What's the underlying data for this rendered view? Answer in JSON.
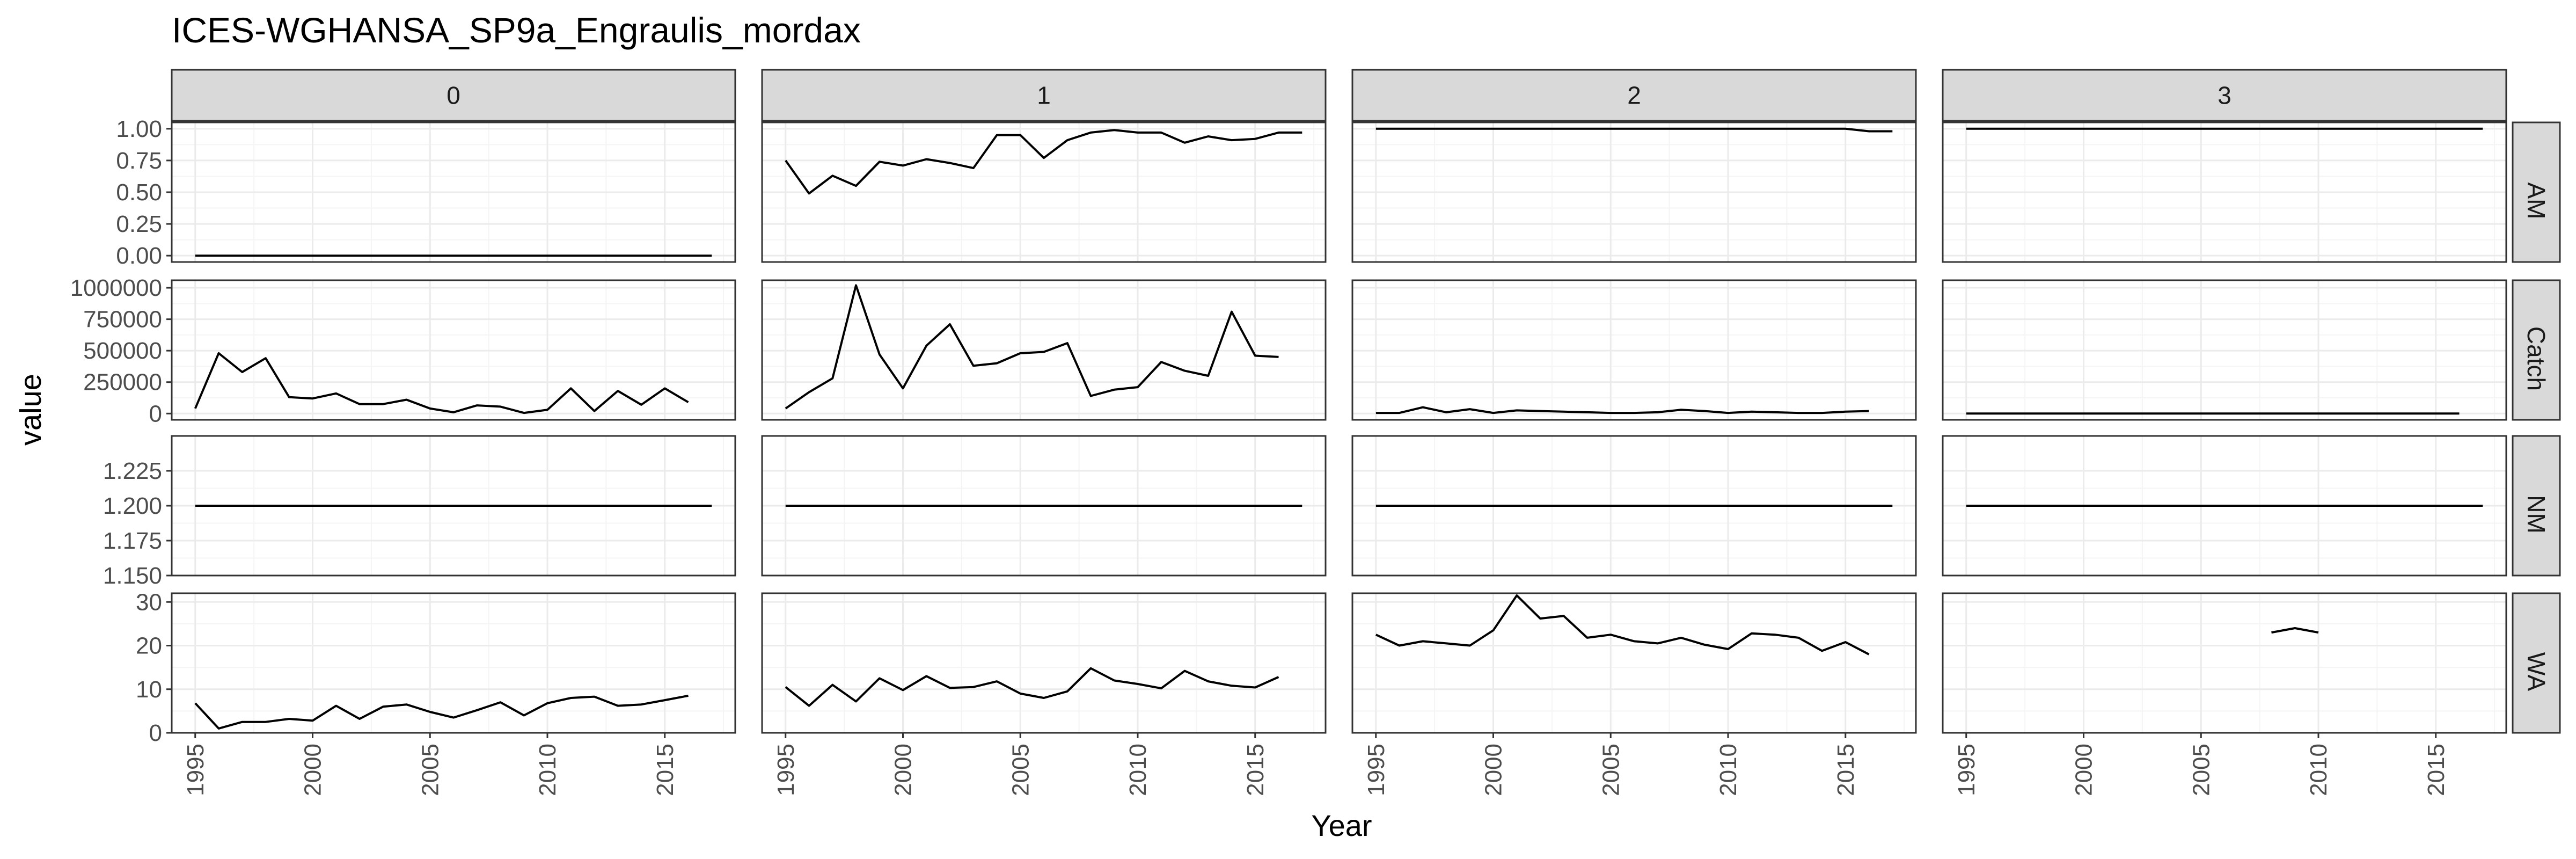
{
  "chart_data": {
    "type": "line",
    "title": "ICES-WGHANSA_SP9a_Engraulis_mordax",
    "xlabel": "Year",
    "ylabel": "value",
    "facet_columns": [
      "0",
      "1",
      "2",
      "3"
    ],
    "facet_rows": [
      "AM",
      "Catch",
      "NM",
      "WA"
    ],
    "xlim": [
      1994,
      2018
    ],
    "x_ticks": [
      1995,
      2000,
      2005,
      2010,
      2015
    ],
    "x_tick_labels": [
      "1995",
      "2000",
      "2005",
      "2010",
      "2015"
    ],
    "rows": {
      "AM": {
        "ylim": [
          -0.05,
          1.05
        ],
        "y_ticks": [
          0,
          0.25,
          0.5,
          0.75,
          1.0
        ],
        "y_tick_labels": [
          "0.00",
          "0.25",
          "0.50",
          "0.75",
          "1.00"
        ],
        "series": {
          "0": [
            [
              1995,
              0
            ],
            [
              2017,
              0
            ]
          ],
          "1": [
            [
              1995,
              0.75
            ],
            [
              1996,
              0.49
            ],
            [
              1997,
              0.63
            ],
            [
              1998,
              0.55
            ],
            [
              1999,
              0.74
            ],
            [
              2000,
              0.71
            ],
            [
              2001,
              0.76
            ],
            [
              2002,
              0.73
            ],
            [
              2003,
              0.69
            ],
            [
              2004,
              0.95
            ],
            [
              2005,
              0.95
            ],
            [
              2006,
              0.77
            ],
            [
              2007,
              0.91
            ],
            [
              2008,
              0.97
            ],
            [
              2009,
              0.99
            ],
            [
              2010,
              0.97
            ],
            [
              2011,
              0.97
            ],
            [
              2012,
              0.89
            ],
            [
              2013,
              0.94
            ],
            [
              2014,
              0.91
            ],
            [
              2015,
              0.92
            ],
            [
              2016,
              0.97
            ],
            [
              2017,
              0.97
            ]
          ],
          "2": [
            [
              1995,
              1.0
            ],
            [
              2014,
              1.0
            ],
            [
              2015,
              1.0
            ],
            [
              2016,
              0.98
            ],
            [
              2017,
              0.98
            ]
          ],
          "3": [
            [
              1995,
              1.0
            ],
            [
              2017,
              1.0
            ]
          ]
        }
      },
      "Catch": {
        "ylim": [
          -50000,
          1060000
        ],
        "y_ticks": [
          0,
          250000,
          500000,
          750000,
          1000000
        ],
        "y_tick_labels": [
          "0",
          "250000",
          "500000",
          "750000",
          "1000000"
        ],
        "series": {
          "0": [
            [
              1995,
              40000
            ],
            [
              1996,
              480000
            ],
            [
              1997,
              330000
            ],
            [
              1998,
              440000
            ],
            [
              1999,
              130000
            ],
            [
              2000,
              120000
            ],
            [
              2001,
              160000
            ],
            [
              2002,
              75000
            ],
            [
              2003,
              75000
            ],
            [
              2004,
              110000
            ],
            [
              2005,
              40000
            ],
            [
              2006,
              10000
            ],
            [
              2007,
              65000
            ],
            [
              2008,
              55000
            ],
            [
              2009,
              5000
            ],
            [
              2010,
              30000
            ],
            [
              2011,
              200000
            ],
            [
              2012,
              20000
            ],
            [
              2013,
              180000
            ],
            [
              2014,
              70000
            ],
            [
              2015,
              200000
            ],
            [
              2016,
              90000
            ]
          ],
          "1": [
            [
              1995,
              40000
            ],
            [
              1996,
              170000
            ],
            [
              1997,
              280000
            ],
            [
              1998,
              1020000
            ],
            [
              1999,
              470000
            ],
            [
              2000,
              200000
            ],
            [
              2001,
              540000
            ],
            [
              2002,
              710000
            ],
            [
              2003,
              380000
            ],
            [
              2004,
              400000
            ],
            [
              2005,
              480000
            ],
            [
              2006,
              490000
            ],
            [
              2007,
              560000
            ],
            [
              2008,
              140000
            ],
            [
              2009,
              190000
            ],
            [
              2010,
              210000
            ],
            [
              2011,
              410000
            ],
            [
              2012,
              340000
            ],
            [
              2013,
              300000
            ],
            [
              2014,
              810000
            ],
            [
              2015,
              460000
            ],
            [
              2016,
              450000
            ]
          ],
          "2": [
            [
              1995,
              5000
            ],
            [
              1996,
              5000
            ],
            [
              1997,
              50000
            ],
            [
              1998,
              10000
            ],
            [
              1999,
              35000
            ],
            [
              2000,
              5000
            ],
            [
              2001,
              25000
            ],
            [
              2002,
              20000
            ],
            [
              2003,
              15000
            ],
            [
              2004,
              10000
            ],
            [
              2005,
              5000
            ],
            [
              2006,
              5000
            ],
            [
              2007,
              10000
            ],
            [
              2008,
              30000
            ],
            [
              2009,
              20000
            ],
            [
              2010,
              5000
            ],
            [
              2011,
              15000
            ],
            [
              2012,
              10000
            ],
            [
              2013,
              5000
            ],
            [
              2014,
              5000
            ],
            [
              2015,
              15000
            ],
            [
              2016,
              20000
            ]
          ],
          "3": [
            [
              1995,
              0
            ],
            [
              2016,
              0
            ]
          ]
        }
      },
      "NM": {
        "ylim": [
          1.15,
          1.25
        ],
        "y_ticks": [
          1.15,
          1.175,
          1.2,
          1.225
        ],
        "y_tick_labels": [
          "1.150",
          "1.175",
          "1.200",
          "1.225"
        ],
        "series": {
          "0": [
            [
              1995,
              1.2
            ],
            [
              2017,
              1.2
            ]
          ],
          "1": [
            [
              1995,
              1.2
            ],
            [
              2017,
              1.2
            ]
          ],
          "2": [
            [
              1995,
              1.2
            ],
            [
              2017,
              1.2
            ]
          ],
          "3": [
            [
              1995,
              1.2
            ],
            [
              2017,
              1.2
            ]
          ]
        }
      },
      "WA": {
        "ylim": [
          0,
          32
        ],
        "y_ticks": [
          0,
          10,
          20,
          30
        ],
        "y_tick_labels": [
          "0",
          "10",
          "20",
          "30"
        ],
        "series": {
          "0": [
            [
              1995,
              6.8
            ],
            [
              1996,
              1.0
            ],
            [
              1997,
              2.5
            ],
            [
              1998,
              2.5
            ],
            [
              1999,
              3.2
            ],
            [
              2000,
              2.8
            ],
            [
              2001,
              6.2
            ],
            [
              2002,
              3.2
            ],
            [
              2003,
              6.0
            ],
            [
              2004,
              6.5
            ],
            [
              2005,
              4.8
            ],
            [
              2006,
              3.5
            ],
            [
              2007,
              5.2
            ],
            [
              2008,
              7.0
            ],
            [
              2009,
              4.0
            ],
            [
              2010,
              6.8
            ],
            [
              2011,
              8.0
            ],
            [
              2012,
              8.3
            ],
            [
              2013,
              6.2
            ],
            [
              2014,
              6.5
            ],
            [
              2015,
              7.5
            ],
            [
              2016,
              8.5
            ]
          ],
          "1": [
            [
              1995,
              10.5
            ],
            [
              1996,
              6.2
            ],
            [
              1997,
              11.0
            ],
            [
              1998,
              7.2
            ],
            [
              1999,
              12.5
            ],
            [
              2000,
              9.8
            ],
            [
              2001,
              13.0
            ],
            [
              2002,
              10.3
            ],
            [
              2003,
              10.5
            ],
            [
              2004,
              11.8
            ],
            [
              2005,
              9.0
            ],
            [
              2006,
              8.0
            ],
            [
              2007,
              9.5
            ],
            [
              2008,
              14.8
            ],
            [
              2009,
              12.0
            ],
            [
              2010,
              11.2
            ],
            [
              2011,
              10.2
            ],
            [
              2012,
              14.2
            ],
            [
              2013,
              11.8
            ],
            [
              2014,
              10.8
            ],
            [
              2015,
              10.4
            ],
            [
              2016,
              12.8
            ]
          ],
          "2": [
            [
              1995,
              22.5
            ],
            [
              1996,
              20.0
            ],
            [
              1997,
              21.0
            ],
            [
              1998,
              20.5
            ],
            [
              1999,
              20.0
            ],
            [
              2000,
              23.5
            ],
            [
              2001,
              31.5
            ],
            [
              2002,
              26.2
            ],
            [
              2003,
              26.8
            ],
            [
              2004,
              21.8
            ],
            [
              2005,
              22.5
            ],
            [
              2006,
              21.0
            ],
            [
              2007,
              20.5
            ],
            [
              2008,
              21.8
            ],
            [
              2009,
              20.2
            ],
            [
              2010,
              19.2
            ],
            [
              2011,
              22.8
            ],
            [
              2012,
              22.5
            ],
            [
              2013,
              21.8
            ],
            [
              2014,
              18.8
            ],
            [
              2015,
              20.8
            ],
            [
              2016,
              18.0
            ]
          ],
          "3": [
            [
              2008,
              23.0
            ],
            [
              2009,
              24.0
            ],
            [
              2010,
              23.0
            ]
          ]
        }
      }
    },
    "line_color": "#000000",
    "strip_fill": "#d9d9d9",
    "panel_border_color": "#333333",
    "grid_major_color": "#ebebeb",
    "grid_minor_color": "#f4f4f4",
    "grid": true,
    "legend": "none"
  }
}
